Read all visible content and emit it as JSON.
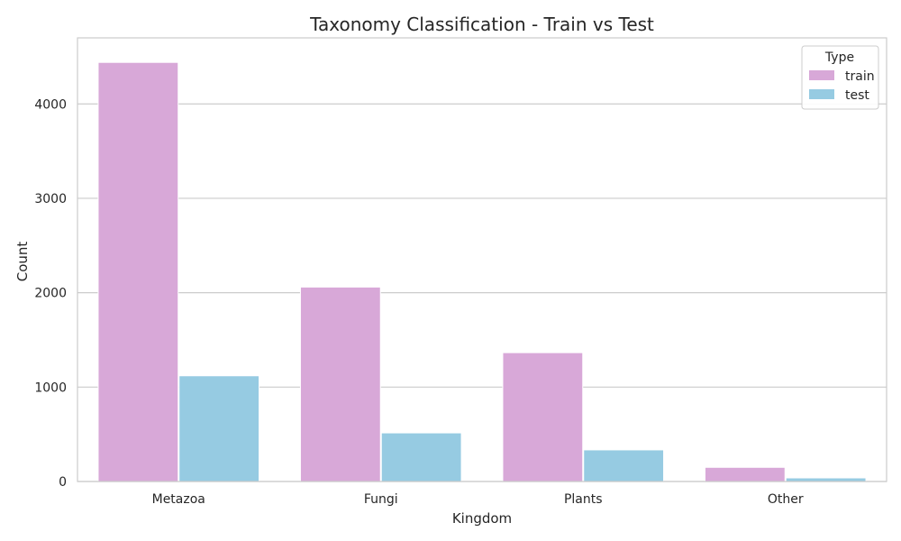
{
  "chart_data": {
    "type": "bar",
    "title": "Taxonomy Classification - Train vs Test",
    "xlabel": "Kingdom",
    "ylabel": "Count",
    "categories": [
      "Metazoa",
      "Fungi",
      "Plants",
      "Other"
    ],
    "series": [
      {
        "name": "train",
        "values": [
          4440,
          2060,
          1365,
          150
        ],
        "color": "#d8a8d8"
      },
      {
        "name": "test",
        "values": [
          1120,
          515,
          335,
          38
        ],
        "color": "#96cbe2"
      }
    ],
    "yticks": [
      0,
      1000,
      2000,
      3000,
      4000
    ],
    "ylim": [
      0,
      4700
    ],
    "grid": true,
    "legend": {
      "title": "Type",
      "placement": "top-right"
    }
  }
}
